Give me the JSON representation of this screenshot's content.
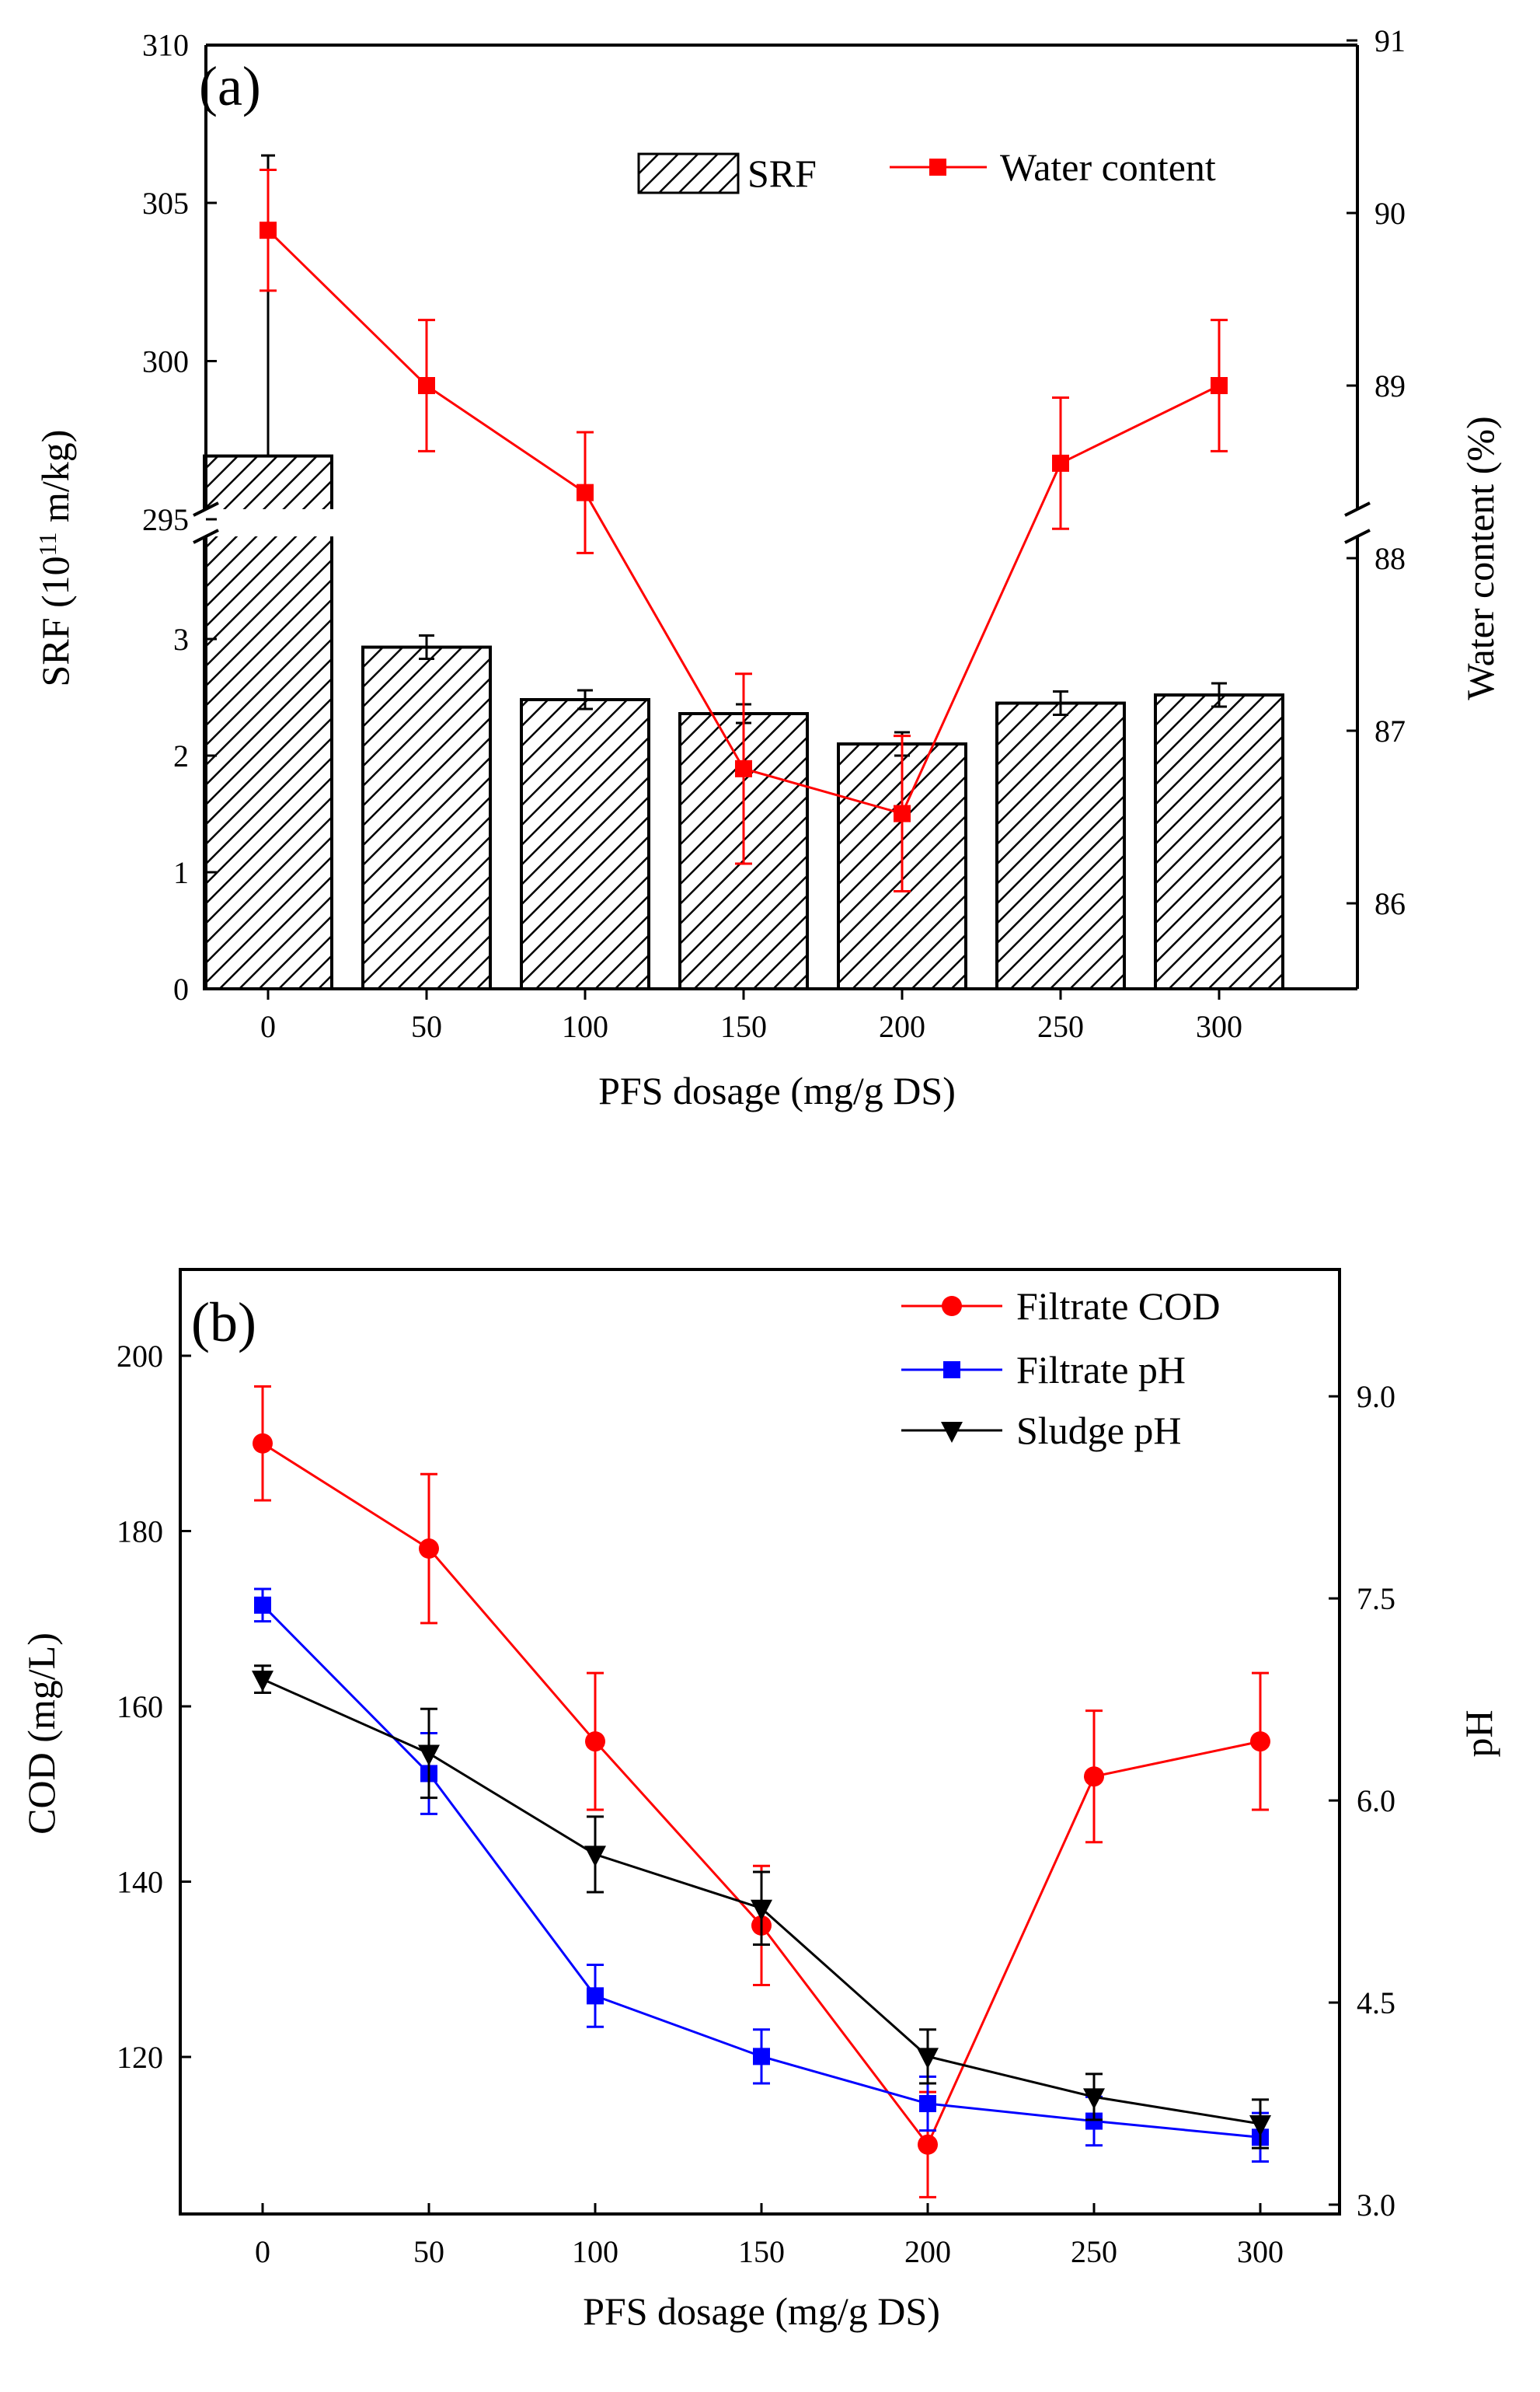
{
  "chart_data": [
    {
      "panel": "(a)",
      "type": "bar",
      "xlabel": "PFS dosage (mg/g DS)",
      "ylabel_left": "SRF (10",
      "ylabel_left_sup": "11",
      "ylabel_left_tail": " m/kg)",
      "ylabel_right": "Water content (%)",
      "categories": [
        0,
        50,
        100,
        150,
        200,
        250,
        300
      ],
      "x_tick_labels": [
        "0",
        "50",
        "100",
        "150",
        "200",
        "250",
        "300"
      ],
      "left_axis": {
        "broken": true,
        "lower_range": [
          0,
          4.0
        ],
        "upper_range": [
          295,
          310
        ],
        "lower_ticks": [
          "0",
          "1",
          "2",
          "3"
        ],
        "upper_ticks": [
          "295",
          "300",
          "305",
          "310"
        ]
      },
      "right_axis": {
        "broken": true,
        "range": [
          85.5,
          91
        ],
        "ticks": [
          "86",
          "87",
          "88",
          "89",
          "90",
          "91"
        ]
      },
      "series": [
        {
          "name": "SRF",
          "type": "bar",
          "pattern": "hatched",
          "axis": "left",
          "values": [
            297,
            2.93,
            2.48,
            2.36,
            2.1,
            2.45,
            2.52
          ],
          "errors": [
            9.5,
            0.1,
            0.08,
            0.08,
            0.1,
            0.1,
            0.1
          ]
        },
        {
          "name": "Water content",
          "type": "line",
          "marker": "square",
          "color": "#ff0000",
          "axis": "right",
          "values": [
            89.9,
            89.0,
            88.38,
            86.78,
            86.52,
            88.55,
            89.0
          ],
          "errors": [
            0.35,
            0.38,
            0.35,
            0.55,
            0.45,
            0.38,
            0.38
          ]
        }
      ]
    },
    {
      "panel": "(b)",
      "type": "line",
      "xlabel": "PFS dosage (mg/g DS)",
      "ylabel_left": "COD (mg/L)",
      "ylabel_right": "pH",
      "categories": [
        0,
        50,
        100,
        150,
        200,
        250,
        300
      ],
      "x_tick_labels": [
        "0",
        "50",
        "100",
        "150",
        "200",
        "250",
        "300"
      ],
      "left_axis": {
        "range": [
          103,
          210
        ],
        "ticks": [
          "120",
          "140",
          "160",
          "180",
          "200"
        ]
      },
      "right_axis": {
        "range": [
          3.0,
          10.0
        ],
        "ticks": [
          "3.0",
          "4.5",
          "6.0",
          "7.5",
          "9.0"
        ]
      },
      "series": [
        {
          "name": "Filtrate COD",
          "marker": "circle",
          "color": "#ff0000",
          "axis": "left",
          "values": [
            190,
            178,
            156,
            135,
            110,
            152,
            156
          ],
          "errors": [
            6.5,
            8.5,
            7.8,
            6.8,
            6.0,
            7.5,
            7.8
          ]
        },
        {
          "name": "Filtrate pH",
          "marker": "square",
          "color": "#0000ff",
          "axis": "right",
          "values": [
            7.45,
            6.2,
            4.55,
            4.1,
            3.75,
            3.62,
            3.5
          ],
          "errors": [
            0.12,
            0.3,
            0.23,
            0.2,
            0.2,
            0.18,
            0.18
          ]
        },
        {
          "name": "Sludge pH",
          "marker": "triangle-down",
          "color": "#000000",
          "axis": "right",
          "values": [
            6.9,
            6.35,
            5.6,
            5.2,
            4.1,
            3.8,
            3.6
          ],
          "errors": [
            0.1,
            0.33,
            0.28,
            0.27,
            0.2,
            0.17,
            0.18
          ]
        }
      ]
    }
  ]
}
